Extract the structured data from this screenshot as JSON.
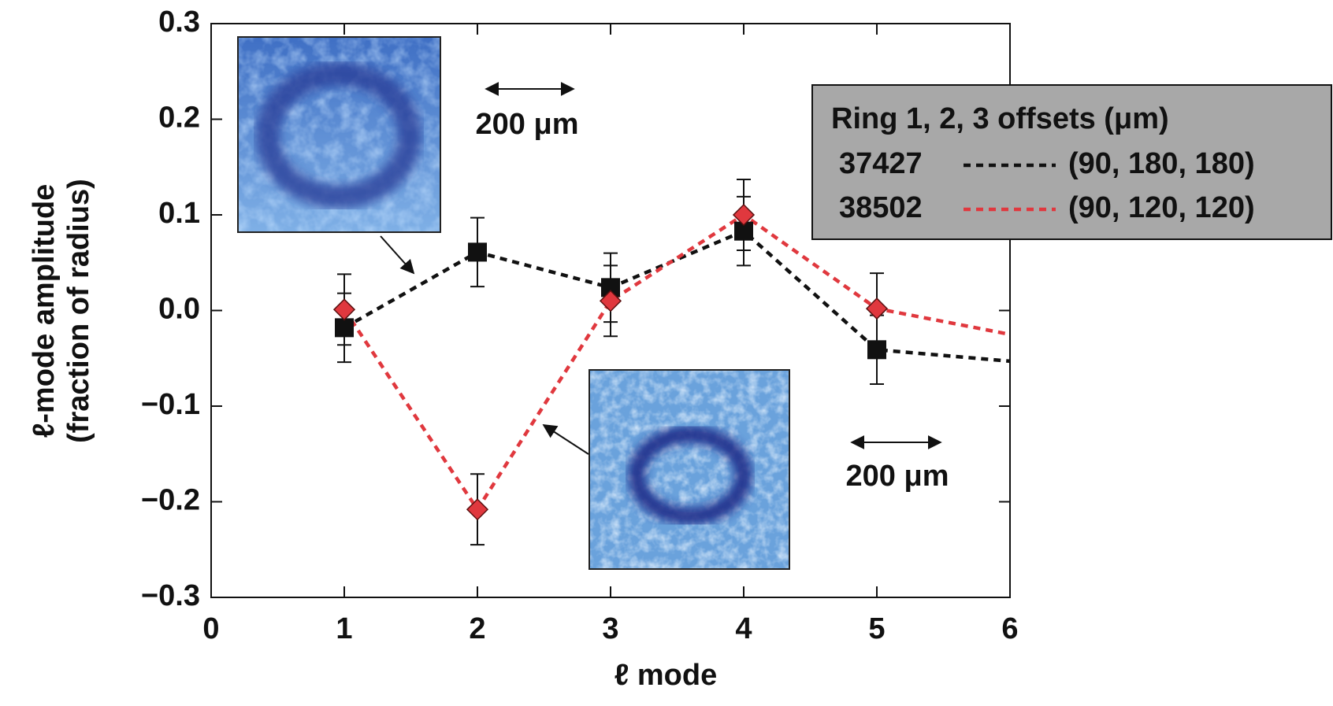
{
  "chart_data": {
    "type": "line",
    "xlabel": "ℓ mode",
    "ylabel": [
      "ℓ-mode amplitude",
      "(fraction of radius)"
    ],
    "x": [
      1,
      2,
      3,
      4,
      5,
      6
    ],
    "series": [
      {
        "name": "37427",
        "offsets": "(90, 180, 180)",
        "color": "#111111",
        "marker": "square",
        "values": [
          -0.018,
          0.061,
          0.024,
          0.083,
          -0.041,
          -0.053
        ],
        "errors": [
          0.036,
          0.036,
          0.036,
          0.036,
          0.036,
          null
        ]
      },
      {
        "name": "38502",
        "offsets": "(90, 120, 120)",
        "color": "#e0383e",
        "marker": "diamond",
        "values": [
          0.001,
          -0.208,
          0.01,
          0.1,
          0.002,
          -0.025
        ],
        "errors": [
          0.037,
          0.037,
          0.037,
          0.037,
          0.037,
          null
        ]
      }
    ],
    "legend_title": "Ring 1, 2, 3 offsets (μm)",
    "scale_labels": [
      "200 μm",
      "200 μm"
    ],
    "xlim": [
      0,
      6
    ],
    "xticks": [
      0,
      1,
      2,
      3,
      4,
      5,
      6
    ],
    "ylim": [
      -0.3,
      0.3
    ],
    "yticks": [
      {
        "value": -0.3,
        "label": "−0.3"
      },
      {
        "value": -0.2,
        "label": "−0.2"
      },
      {
        "value": -0.1,
        "label": "−0.1"
      },
      {
        "value": 0,
        "label": "0.0"
      },
      0.1,
      0.2,
      0.3
    ]
  }
}
